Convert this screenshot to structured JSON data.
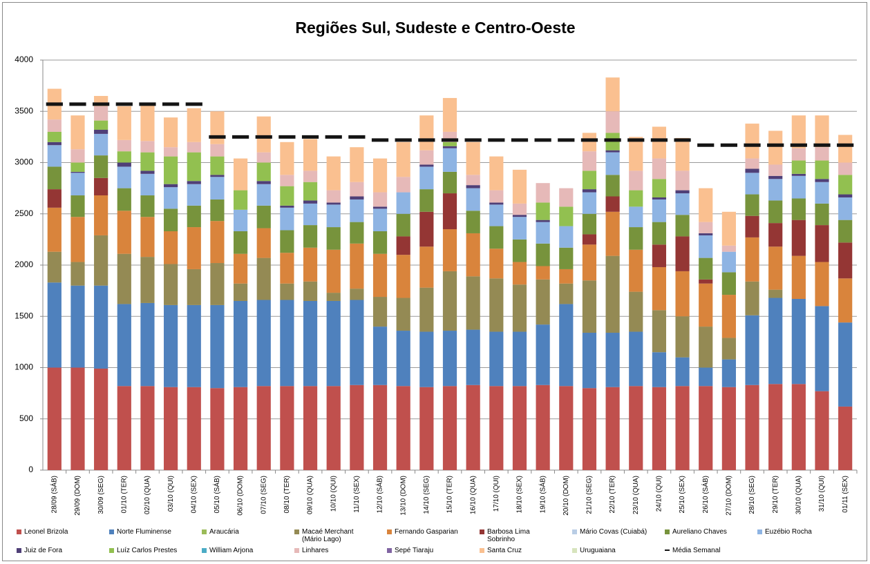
{
  "chart_data": {
    "type": "stacked-bar",
    "title": "Regiões Sul, Sudeste e Centro-Oeste",
    "categories": [
      "28/09 (SÁB)",
      "29/09 (DOM)",
      "30/09 (SEG)",
      "01/10 (TER)",
      "02/10 (QUA)",
      "03/10 (QUI)",
      "04/10 (SEX)",
      "05/10 (SÁB)",
      "06/10 (DOM)",
      "07/10 (SEG)",
      "08/10 (TER)",
      "09/10 (QUA)",
      "10/10 (QUI)",
      "11/10 (SEX)",
      "12/10 (SÁB)",
      "13/10 (DOM)",
      "14/10 (SEG)",
      "15/10 (TER)",
      "16/10 (QUA)",
      "17/10 (QUI)",
      "18/10 (SEX)",
      "19/10 (SÁB)",
      "20/10 (DOM)",
      "21/10 (SEG)",
      "22/10 (TER)",
      "23/10 (QUA)",
      "24/10 (QUI)",
      "25/10 (SEX)",
      "26/10 (SÁB)",
      "27/10 (DOM)",
      "28/10 (SEG)",
      "29/10 (TER)",
      "30/10 (QUA)",
      "31/10 (QUI)",
      "01/11 (SEX)"
    ],
    "series": [
      {
        "name": "Leonel Brizola",
        "color": "#c0504d",
        "values": [
          1000,
          1000,
          990,
          820,
          820,
          810,
          810,
          800,
          810,
          820,
          820,
          820,
          820,
          830,
          830,
          820,
          810,
          820,
          830,
          820,
          820,
          830,
          820,
          800,
          810,
          820,
          810,
          820,
          820,
          810,
          830,
          840,
          840,
          770,
          620
        ]
      },
      {
        "name": "Norte Fluminense",
        "color": "#4f81bd",
        "values": [
          830,
          800,
          810,
          800,
          810,
          800,
          800,
          810,
          840,
          840,
          840,
          830,
          830,
          830,
          570,
          540,
          540,
          540,
          540,
          530,
          530,
          590,
          800,
          540,
          530,
          530,
          340,
          280,
          180,
          270,
          680,
          840,
          830,
          830,
          820
        ]
      },
      {
        "name": "Araucária",
        "color": "#9bbb59",
        "values": [
          0,
          0,
          0,
          0,
          0,
          0,
          0,
          0,
          0,
          0,
          0,
          0,
          0,
          0,
          0,
          0,
          0,
          0,
          0,
          0,
          0,
          0,
          0,
          0,
          0,
          0,
          0,
          0,
          0,
          0,
          0,
          0,
          0,
          0,
          0
        ]
      },
      {
        "name": "Macaé Merchant (Mário Lago)",
        "color": "#948a54",
        "values": [
          300,
          230,
          490,
          490,
          450,
          400,
          350,
          410,
          170,
          410,
          160,
          190,
          80,
          110,
          290,
          320,
          430,
          580,
          520,
          520,
          460,
          440,
          200,
          510,
          750,
          390,
          410,
          400,
          400,
          210,
          330,
          80,
          0,
          0,
          0
        ]
      },
      {
        "name": "Fernando Gasparian",
        "color": "#d9843c",
        "values": [
          430,
          440,
          390,
          420,
          390,
          320,
          410,
          410,
          290,
          290,
          300,
          330,
          420,
          440,
          420,
          420,
          400,
          410,
          420,
          290,
          220,
          130,
          140,
          350,
          430,
          410,
          420,
          440,
          420,
          420,
          430,
          420,
          420,
          430,
          430
        ]
      },
      {
        "name": "Barbosa Lima Sobrinho",
        "color": "#943634",
        "values": [
          180,
          0,
          170,
          0,
          0,
          0,
          0,
          0,
          0,
          0,
          0,
          0,
          0,
          0,
          0,
          180,
          340,
          350,
          0,
          0,
          0,
          0,
          0,
          100,
          150,
          0,
          220,
          340,
          40,
          0,
          210,
          230,
          350,
          360,
          350
        ]
      },
      {
        "name": "Mário Covas (Cuiabá)",
        "color": "#b9cde5",
        "values": [
          0,
          0,
          0,
          0,
          0,
          0,
          0,
          0,
          0,
          0,
          0,
          0,
          0,
          0,
          0,
          0,
          0,
          0,
          0,
          0,
          0,
          0,
          0,
          0,
          0,
          0,
          0,
          0,
          0,
          0,
          0,
          0,
          0,
          0,
          0
        ]
      },
      {
        "name": "Aureliano Chaves",
        "color": "#77933c",
        "values": [
          220,
          210,
          220,
          220,
          210,
          220,
          210,
          210,
          220,
          220,
          220,
          220,
          220,
          210,
          220,
          220,
          220,
          210,
          220,
          220,
          220,
          220,
          210,
          200,
          210,
          220,
          220,
          210,
          210,
          220,
          210,
          220,
          210,
          210,
          220
        ]
      },
      {
        "name": "Euzébio Rocha",
        "color": "#8eb4e3",
        "values": [
          210,
          220,
          210,
          210,
          210,
          210,
          210,
          220,
          210,
          210,
          220,
          210,
          220,
          220,
          220,
          210,
          220,
          230,
          220,
          210,
          220,
          210,
          210,
          210,
          220,
          200,
          220,
          210,
          220,
          200,
          210,
          210,
          220,
          210,
          220
        ]
      },
      {
        "name": "Juiz de Fora",
        "color": "#4f3f77",
        "values": [
          30,
          10,
          40,
          40,
          30,
          30,
          30,
          20,
          0,
          30,
          20,
          30,
          20,
          30,
          20,
          0,
          20,
          20,
          30,
          20,
          20,
          20,
          0,
          30,
          20,
          0,
          20,
          30,
          20,
          0,
          40,
          30,
          20,
          30,
          30
        ]
      },
      {
        "name": "Luíz Carlos Prestes",
        "color": "#92c050",
        "values": [
          100,
          90,
          90,
          110,
          180,
          270,
          280,
          180,
          190,
          180,
          190,
          180,
          0,
          0,
          0,
          0,
          0,
          40,
          0,
          0,
          0,
          170,
          190,
          180,
          170,
          160,
          180,
          0,
          0,
          0,
          0,
          0,
          130,
          180,
          190
        ]
      },
      {
        "name": "William Arjona",
        "color": "#4bacc6",
        "values": [
          0,
          0,
          0,
          0,
          0,
          0,
          0,
          0,
          0,
          0,
          0,
          0,
          0,
          0,
          0,
          0,
          0,
          0,
          0,
          0,
          0,
          0,
          0,
          0,
          0,
          0,
          0,
          0,
          0,
          0,
          0,
          0,
          0,
          0,
          0
        ]
      },
      {
        "name": "Linhares",
        "color": "#e6b9b8",
        "values": [
          120,
          130,
          140,
          110,
          110,
          90,
          100,
          120,
          0,
          100,
          110,
          110,
          120,
          140,
          140,
          150,
          140,
          100,
          100,
          120,
          110,
          190,
          180,
          190,
          210,
          190,
          200,
          190,
          110,
          60,
          100,
          110,
          120,
          130,
          120
        ]
      },
      {
        "name": "Sepé Tiaraju",
        "color": "#8064a2",
        "values": [
          0,
          0,
          0,
          0,
          0,
          0,
          0,
          0,
          0,
          0,
          0,
          0,
          0,
          0,
          0,
          0,
          0,
          0,
          0,
          0,
          0,
          0,
          0,
          0,
          0,
          0,
          0,
          0,
          0,
          0,
          0,
          0,
          0,
          0,
          0
        ]
      },
      {
        "name": "Santa Cruz",
        "color": "#fac090",
        "values": [
          300,
          330,
          100,
          330,
          350,
          290,
          330,
          320,
          310,
          350,
          320,
          310,
          330,
          340,
          330,
          340,
          340,
          330,
          320,
          330,
          330,
          0,
          0,
          180,
          330,
          330,
          310,
          320,
          330,
          330,
          340,
          330,
          320,
          310,
          270
        ]
      },
      {
        "name": "Uruguaiana",
        "color": "#d7e4bd",
        "values": [
          0,
          0,
          0,
          0,
          0,
          0,
          0,
          0,
          0,
          0,
          0,
          0,
          0,
          0,
          0,
          0,
          0,
          0,
          0,
          0,
          0,
          0,
          0,
          0,
          0,
          0,
          0,
          0,
          0,
          0,
          0,
          0,
          0,
          0,
          0
        ]
      }
    ],
    "average": {
      "name": "Média Semanal",
      "color": "#141414",
      "values": [
        3570,
        3570,
        3570,
        3570,
        3570,
        3570,
        3570,
        3250,
        3250,
        3250,
        3250,
        3250,
        3250,
        3250,
        3220,
        3220,
        3220,
        3220,
        3220,
        3220,
        3220,
        3220,
        3220,
        3220,
        3220,
        3220,
        3220,
        3220,
        3170,
        3170,
        3170,
        3170,
        3170,
        3170,
        3170
      ]
    },
    "ylim": [
      0,
      4000
    ],
    "yticks": [
      0,
      500,
      1000,
      1500,
      2000,
      2500,
      3000,
      3500,
      4000
    ],
    "grid": true
  }
}
